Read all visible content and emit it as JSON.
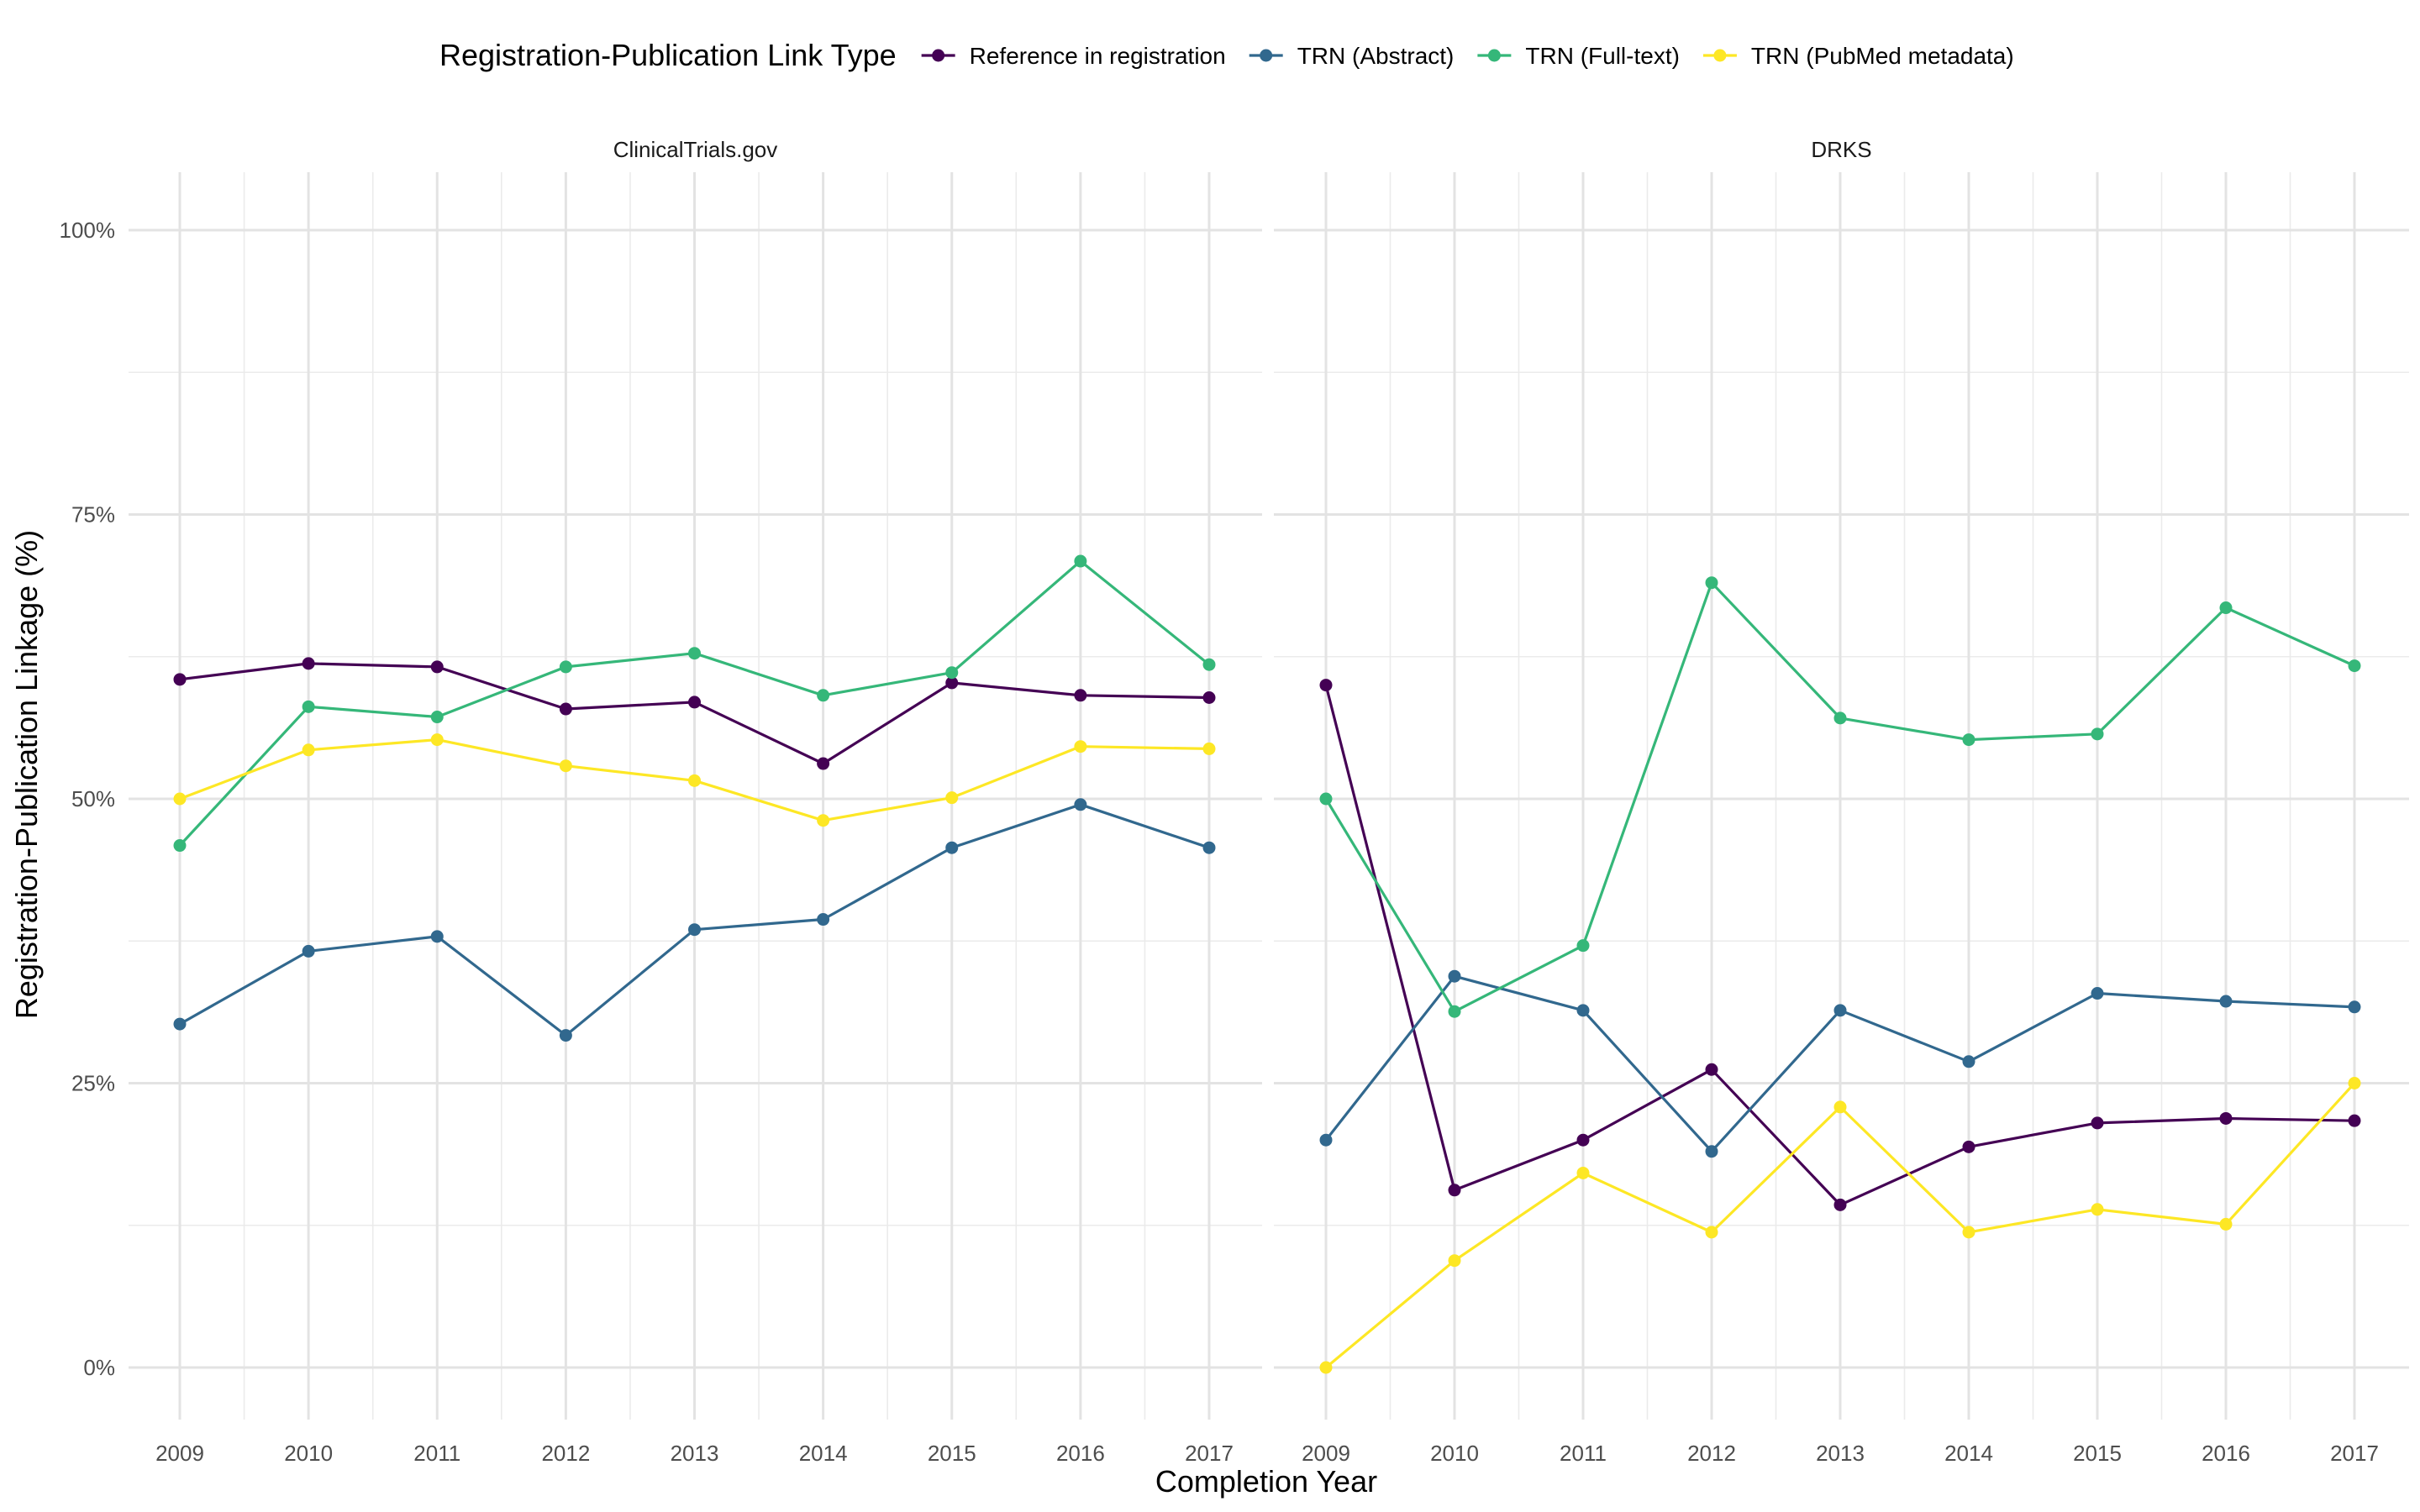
{
  "legend": {
    "title": "Registration-Publication Link Type",
    "position": "top"
  },
  "chart_data": {
    "type": "line",
    "xlabel": "Completion Year",
    "ylabel": "Registration-Publication Linkage (%)",
    "ylim": [
      0,
      100
    ],
    "yticks": [
      "0%",
      "25%",
      "50%",
      "75%",
      "100%"
    ],
    "ytick_values": [
      0,
      25,
      50,
      75,
      100
    ],
    "x": [
      2009,
      2010,
      2011,
      2012,
      2013,
      2014,
      2015,
      2016,
      2017
    ],
    "grid": true,
    "series_names": [
      "Reference in registration",
      "TRN (Abstract)",
      "TRN (Full-text)",
      "TRN (PubMed metadata)"
    ],
    "series_colors": [
      "#440154",
      "#31688E",
      "#35B779",
      "#FDE725"
    ],
    "panels": [
      {
        "title": "ClinicalTrials.gov",
        "series": [
          {
            "name": "Reference in registration",
            "values": [
              60.5,
              61.9,
              61.6,
              57.9,
              58.5,
              53.1,
              60.2,
              59.1,
              58.9
            ]
          },
          {
            "name": "TRN (Abstract)",
            "values": [
              30.2,
              36.6,
              37.9,
              29.2,
              38.5,
              39.4,
              45.7,
              49.5,
              45.7
            ]
          },
          {
            "name": "TRN (Full-text)",
            "values": [
              45.9,
              58.1,
              57.2,
              61.6,
              62.8,
              59.1,
              61.1,
              70.9,
              61.8
            ]
          },
          {
            "name": "TRN (PubMed metadata)",
            "values": [
              50.0,
              54.3,
              55.2,
              52.9,
              51.6,
              48.1,
              50.1,
              54.6,
              54.4
            ]
          }
        ]
      },
      {
        "title": "DRKS",
        "series": [
          {
            "name": "Reference in registration",
            "values": [
              60.0,
              15.6,
              20.0,
              26.2,
              14.3,
              19.4,
              21.5,
              21.9,
              21.7
            ]
          },
          {
            "name": "TRN (Abstract)",
            "values": [
              20.0,
              34.4,
              31.4,
              19.0,
              31.4,
              26.9,
              32.9,
              32.2,
              31.7
            ]
          },
          {
            "name": "TRN (Full-text)",
            "values": [
              50.0,
              31.3,
              37.1,
              69.0,
              57.1,
              55.2,
              55.7,
              66.8,
              61.7
            ]
          },
          {
            "name": "TRN (PubMed metadata)",
            "values": [
              0.0,
              9.4,
              17.1,
              11.9,
              22.9,
              11.9,
              13.9,
              12.6,
              25.0
            ]
          }
        ]
      }
    ]
  }
}
